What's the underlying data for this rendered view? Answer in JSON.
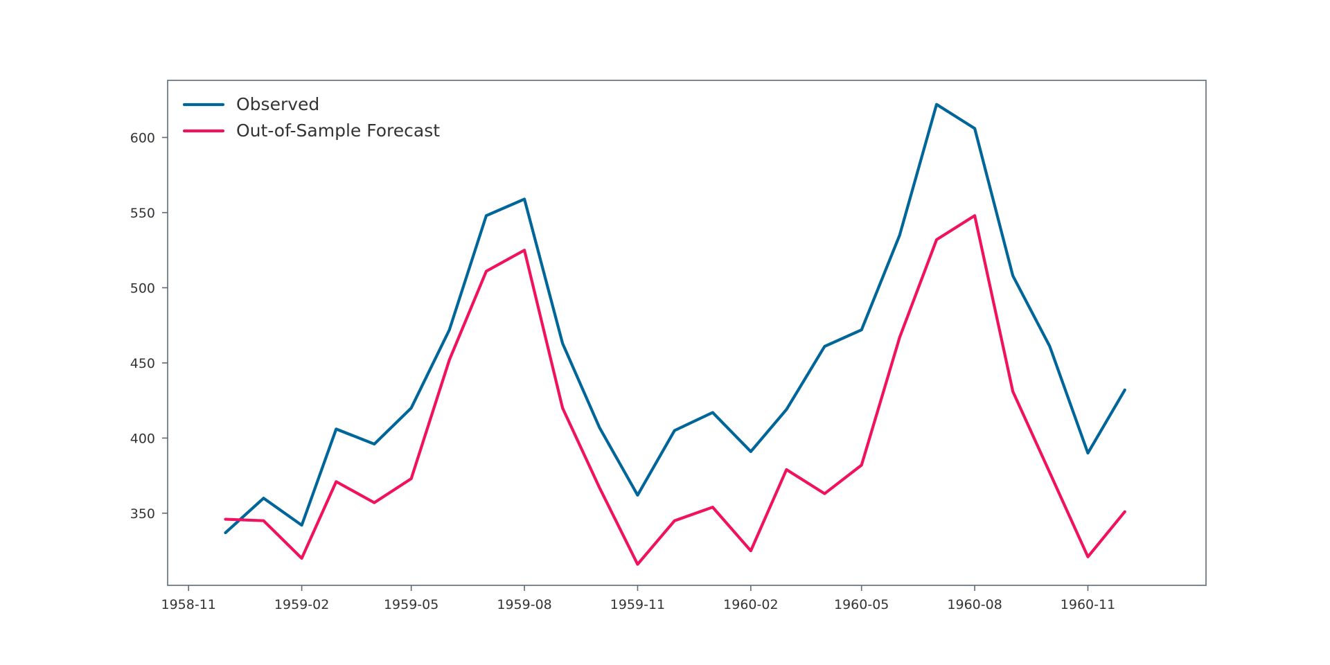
{
  "chart_data": {
    "type": "line",
    "title": "",
    "xlabel": "",
    "ylabel": "",
    "x_dates": [
      "1958-12",
      "1959-01",
      "1959-02",
      "1959-03",
      "1959-04",
      "1959-05",
      "1959-06",
      "1959-07",
      "1959-08",
      "1959-09",
      "1959-10",
      "1959-11",
      "1959-12",
      "1960-01",
      "1960-02",
      "1960-03",
      "1960-04",
      "1960-05",
      "1960-06",
      "1960-07",
      "1960-08",
      "1960-09",
      "1960-10",
      "1960-11",
      "1960-12"
    ],
    "x_ticks": [
      "1958-11",
      "1959-02",
      "1959-05",
      "1959-08",
      "1959-11",
      "1960-02",
      "1960-05",
      "1960-08",
      "1960-11"
    ],
    "xlim": [
      "1958-10-15",
      "1961-02-05"
    ],
    "y_ticks": [
      350,
      400,
      450,
      500,
      550,
      600
    ],
    "ylim": [
      302,
      638
    ],
    "grid": false,
    "legend_position": "top-left",
    "series": [
      {
        "name": "Observed",
        "color": "#006699",
        "values": [
          337,
          360,
          342,
          406,
          396,
          420,
          472,
          548,
          559,
          463,
          407,
          362,
          405,
          417,
          391,
          419,
          461,
          472,
          535,
          622,
          606,
          508,
          461,
          390,
          432
        ]
      },
      {
        "name": "Out-of-Sample Forecast",
        "color": "#f0115f",
        "values": [
          346,
          345,
          320,
          371,
          357,
          373,
          452,
          511,
          525,
          420,
          367,
          316,
          345,
          354,
          325,
          379,
          363,
          382,
          467,
          532,
          548,
          431,
          377,
          321,
          351
        ]
      }
    ]
  }
}
